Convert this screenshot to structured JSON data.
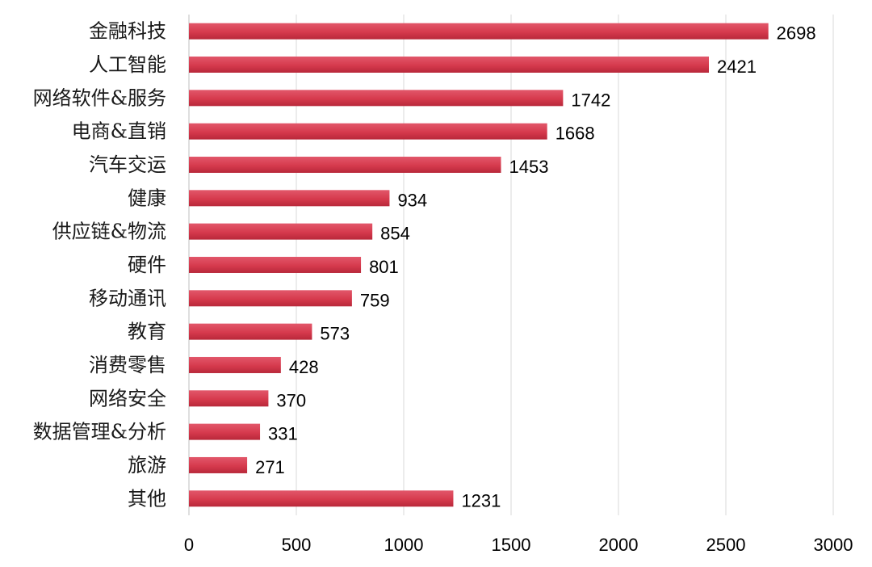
{
  "chart_data": {
    "type": "bar",
    "orientation": "horizontal",
    "categories": [
      "金融科技",
      "人工智能",
      "网络软件&服务",
      "电商&直销",
      "汽车交运",
      "健康",
      "供应链&物流",
      "硬件",
      "移动通讯",
      "教育",
      "消费零售",
      "网络安全",
      "数据管理&分析",
      "旅游",
      "其他"
    ],
    "values": [
      2698,
      2421,
      1742,
      1668,
      1453,
      934,
      854,
      801,
      759,
      573,
      428,
      370,
      331,
      271,
      1231
    ],
    "value_labels": [
      "2698",
      "2421",
      "1742",
      "1668",
      "1453",
      "934",
      "854",
      "801",
      "759",
      "573",
      "428",
      "370",
      "331",
      "271",
      "1231"
    ],
    "xlim": [
      0,
      3000
    ],
    "x_ticks": [
      0,
      500,
      1000,
      1500,
      2000,
      2500,
      3000
    ],
    "x_tick_labels": [
      "0",
      "500",
      "1000",
      "1500",
      "2000",
      "2500",
      "3000"
    ],
    "grid": "vertical",
    "legend": "none",
    "bar_color": "#d63a4d",
    "bar_color_dark": "#b8283a"
  }
}
